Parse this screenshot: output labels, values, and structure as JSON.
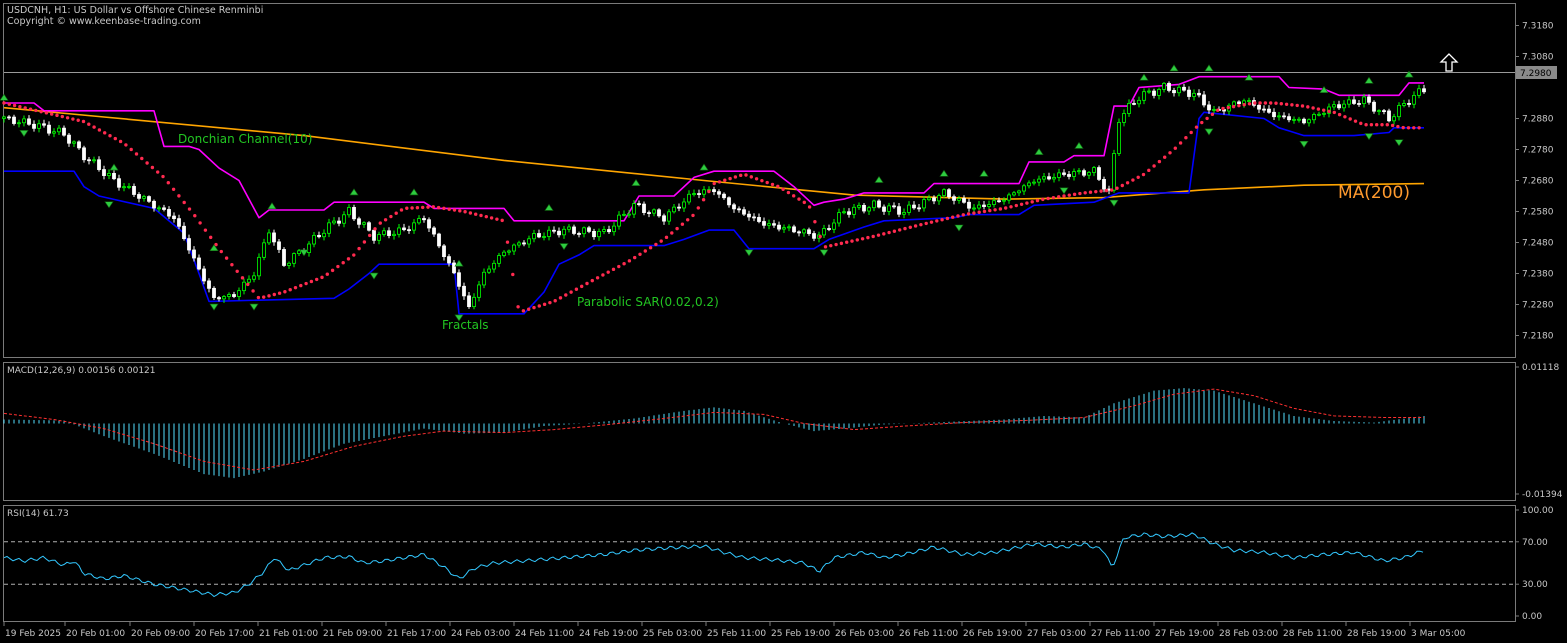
{
  "header": {
    "title": "USDCNH, H1:  US Dollar vs Offshore Chinese Renminbi",
    "copyright": "Copyright © www.keenbase-trading.com"
  },
  "annotations": {
    "donchian": "Donchian Channel(10)",
    "fractals": "Fractals",
    "psar": "Parabolic SAR(0.02,0.2)",
    "ma": "MA(200)"
  },
  "colors": {
    "background": "#000000",
    "bull_candle": "#00ff00",
    "bear_candle": "#ffffff",
    "donchian_upper": "#ff00ff",
    "donchian_lower": "#0000ff",
    "ma200": "#ffa500",
    "psar": "#ff2a4f",
    "fractal": "#2ecc40",
    "macd_hist": "#55e0ff",
    "macd_signal": "#ff3030",
    "rsi": "#33c8ff"
  },
  "price_panel": {
    "y_ticks": [
      "7.3180",
      "7.3080",
      "7.2880",
      "7.2780",
      "7.2680",
      "7.2580",
      "7.2480",
      "7.2380",
      "7.2280",
      "7.2180"
    ],
    "current_price": "7.2980"
  },
  "macd_panel": {
    "label": "MACD(12,26,9) 0.00156 0.00121",
    "y_ticks": [
      "0.01118",
      "-0.01394"
    ]
  },
  "rsi_panel": {
    "label": "RSI(14) 61.73",
    "y_ticks": [
      "100.00",
      "70.00",
      "30.00",
      "0.00"
    ]
  },
  "x_axis": {
    "labels": [
      "19 Feb 2025",
      "20 Feb 01:00",
      "20 Feb 09:00",
      "20 Feb 17:00",
      "21 Feb 01:00",
      "21 Feb 09:00",
      "21 Feb 17:00",
      "24 Feb 03:00",
      "24 Feb 11:00",
      "24 Feb 19:00",
      "25 Feb 03:00",
      "25 Feb 11:00",
      "25 Feb 19:00",
      "26 Feb 03:00",
      "26 Feb 11:00",
      "26 Feb 19:00",
      "27 Feb 03:00",
      "27 Feb 11:00",
      "27 Feb 19:00",
      "28 Feb 03:00",
      "28 Feb 11:00",
      "28 Feb 19:00",
      "3 Mar 05:00"
    ]
  },
  "chart_data": {
    "type": "line",
    "symbol": "USDCNH",
    "timeframe": "H1",
    "price_ylim": [
      7.213,
      7.323
    ],
    "ma200": [
      [
        0,
        7.2915
      ],
      [
        100,
        7.2885
      ],
      [
        300,
        7.2825
      ],
      [
        500,
        7.2745
      ],
      [
        700,
        7.268
      ],
      [
        850,
        7.2633
      ],
      [
        1000,
        7.262
      ],
      [
        1100,
        7.2625
      ],
      [
        1200,
        7.265
      ],
      [
        1300,
        7.2665
      ],
      [
        1420,
        7.267
      ]
    ],
    "donchian_upper": [
      [
        0,
        7.293
      ],
      [
        30,
        7.293
      ],
      [
        40,
        7.2905
      ],
      [
        150,
        7.2905
      ],
      [
        160,
        7.279
      ],
      [
        185,
        7.279
      ],
      [
        195,
        7.278
      ],
      [
        215,
        7.272
      ],
      [
        235,
        7.268
      ],
      [
        255,
        7.256
      ],
      [
        265,
        7.2585
      ],
      [
        320,
        7.2585
      ],
      [
        330,
        7.261
      ],
      [
        420,
        7.261
      ],
      [
        430,
        7.259
      ],
      [
        500,
        7.259
      ],
      [
        510,
        7.255
      ],
      [
        620,
        7.255
      ],
      [
        635,
        7.263
      ],
      [
        670,
        7.263
      ],
      [
        690,
        7.269
      ],
      [
        710,
        7.271
      ],
      [
        770,
        7.271
      ],
      [
        790,
        7.266
      ],
      [
        810,
        7.26
      ],
      [
        820,
        7.261
      ],
      [
        840,
        7.262
      ],
      [
        860,
        7.264
      ],
      [
        920,
        7.264
      ],
      [
        930,
        7.267
      ],
      [
        1015,
        7.267
      ],
      [
        1025,
        7.274
      ],
      [
        1060,
        7.274
      ],
      [
        1070,
        7.276
      ],
      [
        1100,
        7.276
      ],
      [
        1110,
        7.292
      ],
      [
        1125,
        7.292
      ],
      [
        1135,
        7.298
      ],
      [
        1175,
        7.299
      ],
      [
        1195,
        7.3015
      ],
      [
        1275,
        7.3015
      ],
      [
        1285,
        7.298
      ],
      [
        1320,
        7.2975
      ],
      [
        1335,
        7.2955
      ],
      [
        1395,
        7.2955
      ],
      [
        1405,
        7.2995
      ],
      [
        1420,
        7.2995
      ]
    ],
    "donchian_lower": [
      [
        0,
        7.271
      ],
      [
        70,
        7.271
      ],
      [
        80,
        7.266
      ],
      [
        95,
        7.263
      ],
      [
        150,
        7.259
      ],
      [
        180,
        7.251
      ],
      [
        195,
        7.238
      ],
      [
        205,
        7.229
      ],
      [
        330,
        7.23
      ],
      [
        345,
        7.233
      ],
      [
        365,
        7.238
      ],
      [
        375,
        7.241
      ],
      [
        450,
        7.241
      ],
      [
        455,
        7.225
      ],
      [
        520,
        7.225
      ],
      [
        540,
        7.232
      ],
      [
        555,
        7.241
      ],
      [
        575,
        7.244
      ],
      [
        590,
        7.247
      ],
      [
        660,
        7.247
      ],
      [
        680,
        7.249
      ],
      [
        705,
        7.252
      ],
      [
        730,
        7.252
      ],
      [
        745,
        7.246
      ],
      [
        810,
        7.246
      ],
      [
        825,
        7.249
      ],
      [
        860,
        7.253
      ],
      [
        880,
        7.255
      ],
      [
        950,
        7.256
      ],
      [
        965,
        7.257
      ],
      [
        1015,
        7.257
      ],
      [
        1030,
        7.26
      ],
      [
        1090,
        7.261
      ],
      [
        1115,
        7.264
      ],
      [
        1185,
        7.264
      ],
      [
        1195,
        7.288
      ],
      [
        1200,
        7.29
      ],
      [
        1260,
        7.288
      ],
      [
        1275,
        7.285
      ],
      [
        1285,
        7.284
      ],
      [
        1300,
        7.2825
      ],
      [
        1350,
        7.2825
      ],
      [
        1385,
        7.2835
      ],
      [
        1390,
        7.285
      ],
      [
        1420,
        7.285
      ]
    ],
    "psar": [
      [
        0,
        7.293
      ],
      [
        40,
        7.29
      ],
      [
        80,
        7.287
      ],
      [
        120,
        7.28
      ],
      [
        160,
        7.269
      ],
      [
        190,
        7.257
      ],
      [
        215,
        7.246
      ],
      [
        240,
        7.236
      ],
      [
        255,
        7.23
      ],
      [
        280,
        7.232
      ],
      [
        320,
        7.237
      ],
      [
        350,
        7.244
      ],
      [
        375,
        7.254
      ],
      [
        400,
        7.259
      ],
      [
        430,
        7.2595
      ],
      [
        460,
        7.258
      ],
      [
        500,
        7.255
      ],
      [
        515,
        7.2255
      ],
      [
        550,
        7.229
      ],
      [
        590,
        7.236
      ],
      [
        625,
        7.242
      ],
      [
        660,
        7.249
      ],
      [
        690,
        7.257
      ],
      [
        710,
        7.267
      ],
      [
        740,
        7.27
      ],
      [
        775,
        7.266
      ],
      [
        805,
        7.26
      ],
      [
        820,
        7.2465
      ],
      [
        870,
        7.25
      ],
      [
        920,
        7.254
      ],
      [
        960,
        7.257
      ],
      [
        1000,
        7.259
      ],
      [
        1040,
        7.262
      ],
      [
        1080,
        7.264
      ],
      [
        1110,
        7.265
      ],
      [
        1140,
        7.27
      ],
      [
        1170,
        7.278
      ],
      [
        1195,
        7.286
      ],
      [
        1215,
        7.291
      ],
      [
        1250,
        7.293
      ],
      [
        1270,
        7.293
      ],
      [
        1300,
        7.292
      ],
      [
        1330,
        7.29
      ],
      [
        1360,
        7.286
      ],
      [
        1385,
        7.286
      ],
      [
        1400,
        7.285
      ],
      [
        1420,
        7.285
      ]
    ],
    "closes": [
      [
        0,
        7.288
      ],
      [
        30,
        7.286
      ],
      [
        60,
        7.283
      ],
      [
        80,
        7.276
      ],
      [
        110,
        7.268
      ],
      [
        140,
        7.262
      ],
      [
        170,
        7.256
      ],
      [
        200,
        7.236
      ],
      [
        210,
        7.23
      ],
      [
        230,
        7.231
      ],
      [
        250,
        7.238
      ],
      [
        265,
        7.252
      ],
      [
        280,
        7.241
      ],
      [
        300,
        7.246
      ],
      [
        320,
        7.252
      ],
      [
        345,
        7.258
      ],
      [
        370,
        7.25
      ],
      [
        400,
        7.252
      ],
      [
        420,
        7.256
      ],
      [
        450,
        7.238
      ],
      [
        465,
        7.227
      ],
      [
        480,
        7.238
      ],
      [
        500,
        7.245
      ],
      [
        530,
        7.25
      ],
      [
        560,
        7.252
      ],
      [
        600,
        7.251
      ],
      [
        630,
        7.26
      ],
      [
        660,
        7.256
      ],
      [
        690,
        7.264
      ],
      [
        710,
        7.265
      ],
      [
        730,
        7.259
      ],
      [
        760,
        7.254
      ],
      [
        790,
        7.252
      ],
      [
        815,
        7.25
      ],
      [
        840,
        7.258
      ],
      [
        870,
        7.26
      ],
      [
        900,
        7.258
      ],
      [
        940,
        7.264
      ],
      [
        970,
        7.259
      ],
      [
        1000,
        7.262
      ],
      [
        1030,
        7.268
      ],
      [
        1060,
        7.27
      ],
      [
        1090,
        7.271
      ],
      [
        1105,
        7.264
      ],
      [
        1115,
        7.288
      ],
      [
        1135,
        7.295
      ],
      [
        1160,
        7.298
      ],
      [
        1190,
        7.296
      ],
      [
        1210,
        7.29
      ],
      [
        1240,
        7.294
      ],
      [
        1270,
        7.289
      ],
      [
        1300,
        7.287
      ],
      [
        1330,
        7.292
      ],
      [
        1360,
        7.294
      ],
      [
        1385,
        7.288
      ],
      [
        1405,
        7.294
      ],
      [
        1420,
        7.2975
      ]
    ],
    "fractals_up": [
      [
        0,
        7.2945
      ],
      [
        110,
        7.272
      ],
      [
        210,
        7.246
      ],
      [
        268,
        7.2595
      ],
      [
        350,
        7.264
      ],
      [
        410,
        7.264
      ],
      [
        455,
        7.241
      ],
      [
        545,
        7.259
      ],
      [
        632,
        7.267
      ],
      [
        700,
        7.272
      ],
      [
        875,
        7.268
      ],
      [
        940,
        7.27
      ],
      [
        980,
        7.27
      ],
      [
        1035,
        7.277
      ],
      [
        1075,
        7.279
      ],
      [
        1140,
        7.301
      ],
      [
        1170,
        7.304
      ],
      [
        1205,
        7.304
      ],
      [
        1245,
        7.301
      ],
      [
        1320,
        7.297
      ],
      [
        1365,
        7.3
      ],
      [
        1405,
        7.302
      ]
    ],
    "fractals_down": [
      [
        20,
        7.2835
      ],
      [
        105,
        7.2605
      ],
      [
        210,
        7.2275
      ],
      [
        250,
        7.2275
      ],
      [
        300,
        7.245
      ],
      [
        370,
        7.2375
      ],
      [
        455,
        7.224
      ],
      [
        560,
        7.247
      ],
      [
        745,
        7.245
      ],
      [
        820,
        7.245
      ],
      [
        955,
        7.253
      ],
      [
        1060,
        7.265
      ],
      [
        1110,
        7.261
      ],
      [
        1205,
        7.284
      ],
      [
        1300,
        7.28
      ],
      [
        1365,
        7.2825
      ],
      [
        1395,
        7.2805
      ]
    ],
    "macd_ylim": [
      -0.01394,
      0.01118
    ],
    "macd_hist": [
      [
        0,
        0.0008
      ],
      [
        60,
        0.0006
      ],
      [
        100,
        -0.0025
      ],
      [
        150,
        -0.006
      ],
      [
        200,
        -0.01
      ],
      [
        230,
        -0.0108
      ],
      [
        260,
        -0.0095
      ],
      [
        300,
        -0.007
      ],
      [
        340,
        -0.004
      ],
      [
        380,
        -0.0025
      ],
      [
        420,
        -0.001
      ],
      [
        460,
        -0.002
      ],
      [
        500,
        -0.0018
      ],
      [
        540,
        -0.0005
      ],
      [
        580,
        0.0
      ],
      [
        630,
        0.001
      ],
      [
        680,
        0.0025
      ],
      [
        710,
        0.0032
      ],
      [
        740,
        0.0025
      ],
      [
        780,
        0.0
      ],
      [
        810,
        -0.0015
      ],
      [
        840,
        -0.001
      ],
      [
        880,
        -0.0002
      ],
      [
        940,
        0.0003
      ],
      [
        1000,
        0.0008
      ],
      [
        1040,
        0.0015
      ],
      [
        1080,
        0.0012
      ],
      [
        1110,
        0.004
      ],
      [
        1150,
        0.0065
      ],
      [
        1180,
        0.007
      ],
      [
        1210,
        0.0065
      ],
      [
        1250,
        0.004
      ],
      [
        1290,
        0.0015
      ],
      [
        1330,
        0.0005
      ],
      [
        1370,
        0.0002
      ],
      [
        1420,
        0.0015
      ]
    ],
    "macd_signal": [
      [
        0,
        0.002
      ],
      [
        50,
        0.0008
      ],
      [
        100,
        -0.001
      ],
      [
        150,
        -0.004
      ],
      [
        200,
        -0.0075
      ],
      [
        250,
        -0.0092
      ],
      [
        300,
        -0.0075
      ],
      [
        350,
        -0.0045
      ],
      [
        400,
        -0.0025
      ],
      [
        440,
        -0.0015
      ],
      [
        500,
        -0.0018
      ],
      [
        550,
        -0.0012
      ],
      [
        600,
        -0.0003
      ],
      [
        660,
        0.001
      ],
      [
        710,
        0.0022
      ],
      [
        760,
        0.0018
      ],
      [
        800,
        0.0
      ],
      [
        850,
        -0.0012
      ],
      [
        900,
        -0.0005
      ],
      [
        960,
        0.0002
      ],
      [
        1020,
        0.0006
      ],
      [
        1080,
        0.0012
      ],
      [
        1130,
        0.0035
      ],
      [
        1170,
        0.0058
      ],
      [
        1210,
        0.0068
      ],
      [
        1250,
        0.0055
      ],
      [
        1290,
        0.003
      ],
      [
        1330,
        0.0015
      ],
      [
        1380,
        0.0012
      ],
      [
        1420,
        0.0012
      ]
    ],
    "rsi_ylim": [
      0,
      100
    ],
    "rsi": [
      [
        0,
        55
      ],
      [
        20,
        52
      ],
      [
        40,
        55
      ],
      [
        60,
        48
      ],
      [
        70,
        52
      ],
      [
        80,
        40
      ],
      [
        100,
        35
      ],
      [
        120,
        38
      ],
      [
        150,
        30
      ],
      [
        180,
        25
      ],
      [
        210,
        20
      ],
      [
        230,
        22
      ],
      [
        245,
        30
      ],
      [
        260,
        42
      ],
      [
        270,
        55
      ],
      [
        285,
        43
      ],
      [
        300,
        48
      ],
      [
        320,
        55
      ],
      [
        345,
        56
      ],
      [
        360,
        50
      ],
      [
        380,
        52
      ],
      [
        400,
        55
      ],
      [
        420,
        58
      ],
      [
        440,
        46
      ],
      [
        455,
        35
      ],
      [
        470,
        45
      ],
      [
        490,
        50
      ],
      [
        520,
        52
      ],
      [
        560,
        55
      ],
      [
        600,
        58
      ],
      [
        630,
        62
      ],
      [
        660,
        64
      ],
      [
        700,
        66
      ],
      [
        720,
        60
      ],
      [
        740,
        55
      ],
      [
        770,
        53
      ],
      [
        800,
        50
      ],
      [
        815,
        42
      ],
      [
        830,
        55
      ],
      [
        860,
        60
      ],
      [
        880,
        55
      ],
      [
        900,
        58
      ],
      [
        930,
        65
      ],
      [
        960,
        58
      ],
      [
        990,
        60
      ],
      [
        1030,
        68
      ],
      [
        1060,
        65
      ],
      [
        1080,
        68
      ],
      [
        1100,
        62
      ],
      [
        1108,
        45
      ],
      [
        1120,
        74
      ],
      [
        1140,
        77
      ],
      [
        1160,
        75
      ],
      [
        1190,
        77
      ],
      [
        1210,
        68
      ],
      [
        1230,
        62
      ],
      [
        1260,
        60
      ],
      [
        1290,
        55
      ],
      [
        1320,
        58
      ],
      [
        1350,
        60
      ],
      [
        1380,
        52
      ],
      [
        1400,
        55
      ],
      [
        1420,
        62
      ]
    ]
  }
}
